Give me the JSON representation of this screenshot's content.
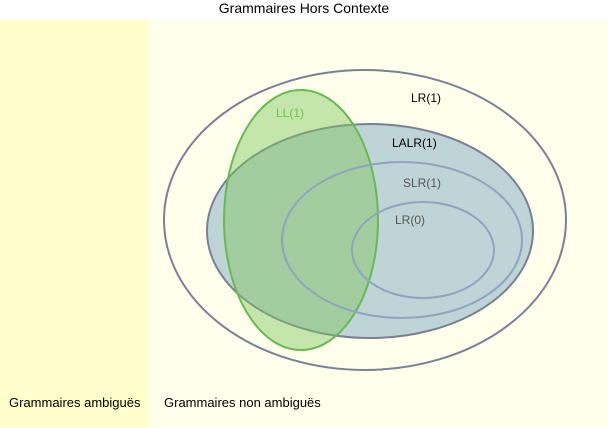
{
  "title": "Grammaires Hors Contexte",
  "regions": {
    "ambiguous": "Grammaires ambiguës",
    "non_ambiguous": "Grammaires non ambiguës"
  },
  "sets": {
    "lr1": "LR(1)",
    "lalr1": "LALR(1)",
    "slr1": "SLR(1)",
    "lr0": "LR(0)",
    "ll1": "LL(1)"
  },
  "colors": {
    "ambiguous_bg": "#ffffcc",
    "non_ambiguous_bg": "#ffffec",
    "outline": "#788096",
    "lalr_fill": "#b4ccd4",
    "ll_fill": "#a8d890",
    "ll_stroke": "#66bb50",
    "ll_text": "#6cbf4c"
  }
}
